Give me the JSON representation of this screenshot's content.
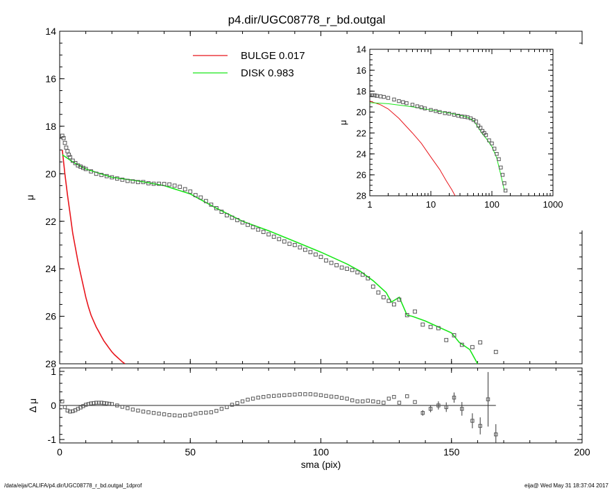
{
  "title": "p4.dir/UGC08778_r_bd.outgal",
  "footer_left": "/data/eija/CALIFA/p4.dir/UGC08778_r_bd.outgal_1dprof",
  "footer_right": "eija@  Wed May 31 18:37:04 2017",
  "colors": {
    "bulge": "#e8141b",
    "disk": "#18e718",
    "data": "#555555",
    "axis": "#000000"
  },
  "chart_data": [
    {
      "type": "scatter",
      "title": "p4.dir/UGC08778_r_bd.outgal",
      "xlabel": "",
      "ylabel": "μ",
      "xlim": [
        0,
        200
      ],
      "ylim": [
        28,
        14
      ],
      "y_inverted": true,
      "xticks": [
        0,
        50,
        100,
        150,
        200
      ],
      "yticks": [
        14,
        16,
        18,
        20,
        22,
        24,
        26,
        28
      ],
      "legend": [
        {
          "name": "BULGE",
          "value": "0.017",
          "color": "#e8141b"
        },
        {
          "name": "DISK",
          "value": "0.983",
          "color": "#18e718"
        }
      ],
      "series": [
        {
          "name": "BULGE",
          "kind": "line",
          "x": [
            1,
            2,
            3,
            4,
            5,
            6,
            7,
            8,
            9,
            10,
            11,
            12,
            13,
            14,
            15,
            16,
            17,
            18,
            19,
            20,
            21,
            22,
            23,
            24,
            25
          ],
          "y": [
            19.0,
            20.0,
            20.9,
            21.7,
            22.5,
            23.1,
            23.7,
            24.2,
            24.7,
            25.2,
            25.6,
            25.95,
            26.2,
            26.45,
            26.65,
            26.85,
            27.05,
            27.2,
            27.35,
            27.5,
            27.62,
            27.72,
            27.82,
            27.92,
            28.0
          ]
        },
        {
          "name": "DISK",
          "kind": "line",
          "x": [
            1,
            5,
            10,
            20,
            30,
            40,
            50,
            60,
            70,
            80,
            90,
            100,
            110,
            115,
            120,
            125,
            127,
            130,
            133,
            135,
            140,
            145,
            150,
            153,
            157,
            160
          ],
          "y": [
            19.2,
            19.5,
            19.8,
            20.15,
            20.3,
            20.5,
            20.85,
            21.45,
            22.0,
            22.4,
            22.85,
            23.3,
            23.8,
            24.1,
            24.5,
            25.0,
            25.4,
            25.2,
            25.95,
            26.0,
            26.2,
            26.45,
            26.7,
            27.1,
            27.4,
            28.0
          ]
        },
        {
          "name": "data",
          "kind": "points",
          "x": [
            1,
            1.5,
            2,
            2.5,
            3,
            3.5,
            4,
            5,
            6,
            7,
            8,
            9,
            10,
            12,
            14,
            16,
            18,
            20,
            22,
            24,
            26,
            28,
            30,
            32,
            34,
            36,
            38,
            40,
            42,
            44,
            46,
            48,
            50,
            52,
            54,
            56,
            58,
            60,
            62,
            64,
            66,
            68,
            70,
            72,
            74,
            76,
            78,
            80,
            82,
            84,
            86,
            88,
            90,
            92,
            94,
            96,
            98,
            100,
            102,
            104,
            106,
            108,
            110,
            112,
            114,
            116,
            118,
            120,
            122,
            124,
            126,
            128,
            130,
            133,
            136,
            139,
            142,
            145,
            148,
            151,
            154,
            158,
            161,
            167
          ],
          "y": [
            18.4,
            18.5,
            18.7,
            18.9,
            19.05,
            19.2,
            19.3,
            19.45,
            19.55,
            19.65,
            19.7,
            19.75,
            19.8,
            19.9,
            20.0,
            20.05,
            20.1,
            20.15,
            20.2,
            20.25,
            20.3,
            20.32,
            20.35,
            20.35,
            20.4,
            20.42,
            20.42,
            20.43,
            20.45,
            20.5,
            20.55,
            20.65,
            20.75,
            20.9,
            21.0,
            21.15,
            21.3,
            21.45,
            21.6,
            21.75,
            21.85,
            21.95,
            22.05,
            22.15,
            22.25,
            22.35,
            22.45,
            22.55,
            22.65,
            22.75,
            22.85,
            22.95,
            23.0,
            23.1,
            23.2,
            23.3,
            23.4,
            23.5,
            23.65,
            23.75,
            23.85,
            23.95,
            24.0,
            24.05,
            24.15,
            24.25,
            24.4,
            24.75,
            25.0,
            25.2,
            25.35,
            25.5,
            25.3,
            25.95,
            25.8,
            26.35,
            26.45,
            26.5,
            27.0,
            26.8,
            27.2,
            27.3,
            27.1,
            27.5
          ],
          "err": [
            0,
            0,
            0,
            0,
            0,
            0,
            0,
            0,
            0,
            0,
            0,
            0,
            0,
            0,
            0,
            0,
            0,
            0,
            0,
            0,
            0,
            0,
            0,
            0,
            0,
            0,
            0,
            0,
            0,
            0,
            0,
            0,
            0,
            0,
            0,
            0,
            0,
            0,
            0,
            0,
            0,
            0,
            0,
            0,
            0,
            0,
            0,
            0,
            0,
            0,
            0,
            0,
            0,
            0,
            0,
            0,
            0,
            0,
            0,
            0,
            0,
            0,
            0,
            0,
            0,
            0,
            0,
            0,
            0,
            0,
            0,
            0,
            0,
            0,
            0,
            0,
            0,
            0,
            0,
            0,
            0,
            0,
            0,
            0
          ]
        }
      ]
    },
    {
      "type": "scatter",
      "xlabel": "",
      "ylabel": "μ",
      "xscale": "log",
      "xlim": [
        1,
        1000
      ],
      "ylim": [
        28,
        14
      ],
      "y_inverted": true,
      "xticks": [
        1,
        10,
        100,
        1000
      ],
      "xticklabels": [
        "1",
        "10",
        "100",
        "1000"
      ],
      "yticks": [
        14,
        16,
        18,
        20,
        22,
        24,
        26,
        28
      ],
      "series": [
        {
          "name": "BULGE",
          "kind": "line",
          "x": [
            1,
            1.5,
            2,
            3,
            4,
            5,
            7,
            10,
            14,
            18,
            22,
            25
          ],
          "y": [
            18.95,
            19.3,
            19.7,
            20.6,
            21.4,
            22.0,
            23.0,
            24.3,
            25.5,
            26.6,
            27.4,
            28.0
          ]
        },
        {
          "name": "DISK",
          "kind": "line",
          "x": [
            1,
            2,
            5,
            10,
            20,
            30,
            40,
            50,
            60,
            70,
            80,
            100,
            120,
            140,
            160
          ],
          "y": [
            19.1,
            19.2,
            19.5,
            19.8,
            20.1,
            20.3,
            20.5,
            20.8,
            21.5,
            22.1,
            22.5,
            23.3,
            24.4,
            26.0,
            27.5
          ]
        },
        {
          "name": "data",
          "kind": "points",
          "x": [
            1,
            1.1,
            1.2,
            1.3,
            1.5,
            1.7,
            2,
            2.5,
            3,
            3.5,
            4,
            5,
            6,
            7,
            8,
            10,
            12,
            14,
            17,
            20,
            24,
            28,
            32,
            36,
            40,
            45,
            50,
            55,
            60,
            65,
            70,
            75,
            80,
            90,
            100,
            110,
            120,
            130,
            140,
            150,
            160,
            167
          ],
          "y": [
            18.4,
            18.4,
            18.4,
            18.45,
            18.5,
            18.55,
            18.65,
            18.8,
            18.95,
            19.05,
            19.15,
            19.3,
            19.45,
            19.55,
            19.65,
            19.8,
            19.9,
            20.0,
            20.1,
            20.15,
            20.25,
            20.35,
            20.42,
            20.45,
            20.5,
            20.6,
            20.75,
            20.9,
            21.3,
            21.5,
            21.8,
            22.0,
            22.2,
            22.7,
            23.0,
            23.5,
            24.0,
            24.5,
            25.3,
            26.0,
            26.8,
            27.5
          ]
        }
      ]
    },
    {
      "type": "scatter",
      "xlabel": "sma (pix)",
      "ylabel": "Δ μ",
      "xlim": [
        0,
        200
      ],
      "ylim": [
        -1.1,
        1.1
      ],
      "xticks": [
        0,
        50,
        100,
        150,
        200
      ],
      "yticks": [
        1,
        0,
        -1
      ],
      "series": [
        {
          "name": "residual",
          "kind": "points",
          "x": [
            1,
            2,
            3,
            4,
            5,
            6,
            7,
            8,
            9,
            10,
            11,
            12,
            13,
            14,
            15,
            16,
            17,
            18,
            19,
            20,
            22,
            24,
            26,
            28,
            30,
            32,
            34,
            36,
            38,
            40,
            42,
            44,
            46,
            48,
            50,
            52,
            54,
            56,
            58,
            60,
            62,
            64,
            66,
            68,
            70,
            72,
            74,
            76,
            78,
            80,
            82,
            84,
            86,
            88,
            90,
            92,
            94,
            96,
            98,
            100,
            102,
            104,
            106,
            108,
            110,
            112,
            114,
            116,
            118,
            120,
            122,
            124,
            126,
            128,
            130,
            133,
            136,
            139,
            142,
            145,
            148,
            151,
            154,
            158,
            161,
            164,
            167
          ],
          "y": [
            0.12,
            -0.05,
            -0.15,
            -0.18,
            -0.17,
            -0.14,
            -0.1,
            -0.06,
            -0.02,
            0.02,
            0.04,
            0.06,
            0.07,
            0.08,
            0.08,
            0.08,
            0.07,
            0.06,
            0.05,
            0.04,
            0.0,
            -0.04,
            -0.08,
            -0.12,
            -0.15,
            -0.18,
            -0.2,
            -0.22,
            -0.24,
            -0.26,
            -0.28,
            -0.29,
            -0.3,
            -0.29,
            -0.27,
            -0.24,
            -0.22,
            -0.21,
            -0.2,
            -0.16,
            -0.1,
            -0.05,
            0.02,
            0.07,
            0.12,
            0.17,
            0.2,
            0.23,
            0.25,
            0.27,
            0.28,
            0.29,
            0.3,
            0.31,
            0.32,
            0.33,
            0.33,
            0.33,
            0.32,
            0.3,
            0.28,
            0.26,
            0.25,
            0.22,
            0.2,
            0.15,
            0.12,
            0.12,
            0.14,
            0.12,
            0.1,
            0.08,
            0.2,
            0.25,
            0.08,
            0.27,
            0.1,
            -0.22,
            -0.1,
            0.0,
            -0.05,
            0.23,
            -0.1,
            -0.45,
            -0.6,
            0.18,
            -0.85
          ],
          "err": [
            0,
            0,
            0,
            0,
            0,
            0,
            0,
            0,
            0,
            0,
            0,
            0,
            0,
            0,
            0,
            0,
            0,
            0,
            0,
            0,
            0,
            0,
            0,
            0,
            0,
            0,
            0,
            0,
            0,
            0,
            0,
            0,
            0,
            0,
            0,
            0,
            0,
            0,
            0,
            0,
            0,
            0,
            0,
            0,
            0,
            0,
            0,
            0,
            0,
            0,
            0,
            0,
            0,
            0,
            0,
            0,
            0,
            0,
            0,
            0,
            0,
            0,
            0,
            0,
            0,
            0,
            0,
            0,
            0,
            0,
            0,
            0,
            0,
            0,
            0,
            0,
            0,
            0.08,
            0.1,
            0.12,
            0.14,
            0.15,
            0.2,
            0.22,
            0.25,
            0.8,
            0.3
          ]
        }
      ]
    }
  ]
}
